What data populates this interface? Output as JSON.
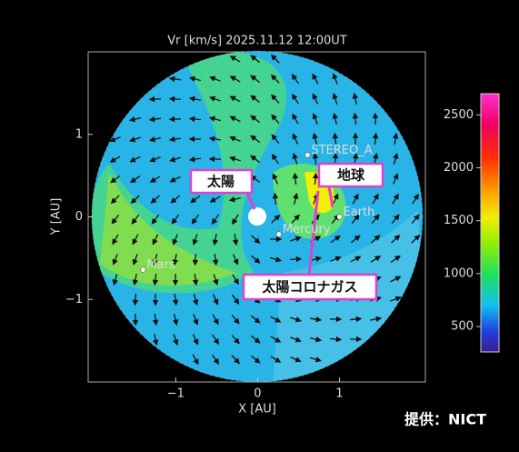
{
  "chart_data": {
    "type": "field",
    "title": "Vr [km/s] 2025.11.12 12:00UT",
    "xlabel": "X [AU]",
    "ylabel": "Y [AU]",
    "xlim": [
      -2.07,
      2.05
    ],
    "ylim": [
      -2,
      2
    ],
    "xticks": [
      {
        "value": -1,
        "label": "−1"
      },
      0,
      1
    ],
    "yticks": [
      {
        "value": -1,
        "label": "−1"
      },
      0,
      1
    ],
    "clim": [
      260,
      2700
    ],
    "cticks": [
      500,
      1000,
      1500,
      2000,
      2500
    ],
    "points": [
      {
        "name": "STEREO_A",
        "x": 0.61,
        "y": 0.75
      },
      {
        "name": "Earth",
        "x": 1.0,
        "y": 0.0
      },
      {
        "name": "Mercury",
        "x": 0.26,
        "y": -0.21
      },
      {
        "name": "Mars",
        "x": -1.4,
        "y": -0.64
      }
    ],
    "annotations": [
      "太陽",
      "地球",
      "太陽コロナガス"
    ],
    "credit": "提供：NICT"
  }
}
